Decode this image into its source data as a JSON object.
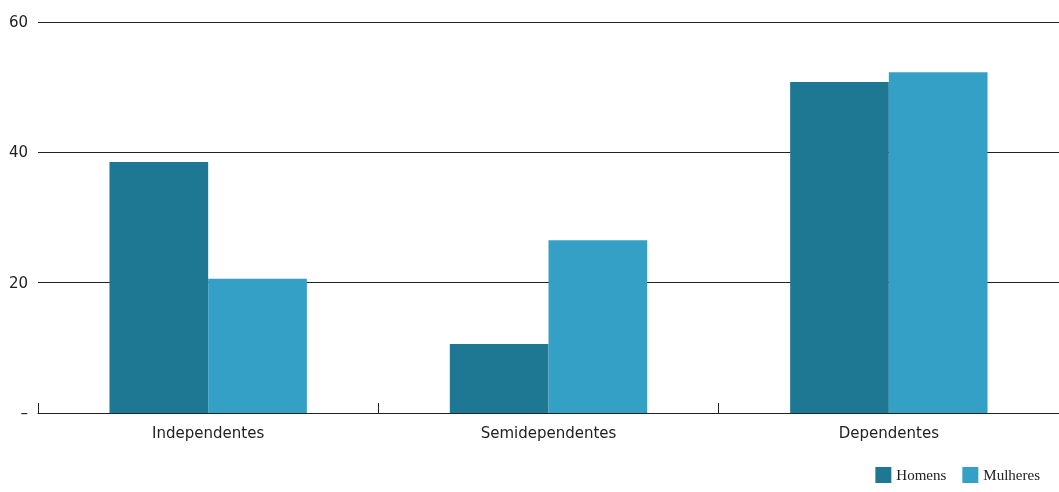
{
  "chart_data": {
    "type": "bar",
    "categories": [
      "Independentes",
      "Semidependentes",
      "Dependentes"
    ],
    "series": [
      {
        "name": "Homens",
        "color": "#1f7893",
        "values": [
          38.5,
          10.6,
          50.8
        ]
      },
      {
        "name": "Mulheres",
        "color": "#35a0c6",
        "values": [
          20.6,
          26.5,
          52.3
        ]
      }
    ],
    "ylim": [
      0,
      60
    ],
    "yticks": [
      {
        "value": 0,
        "label": "–"
      },
      20,
      40,
      60
    ],
    "grid": "y",
    "legend": "bottom right"
  }
}
